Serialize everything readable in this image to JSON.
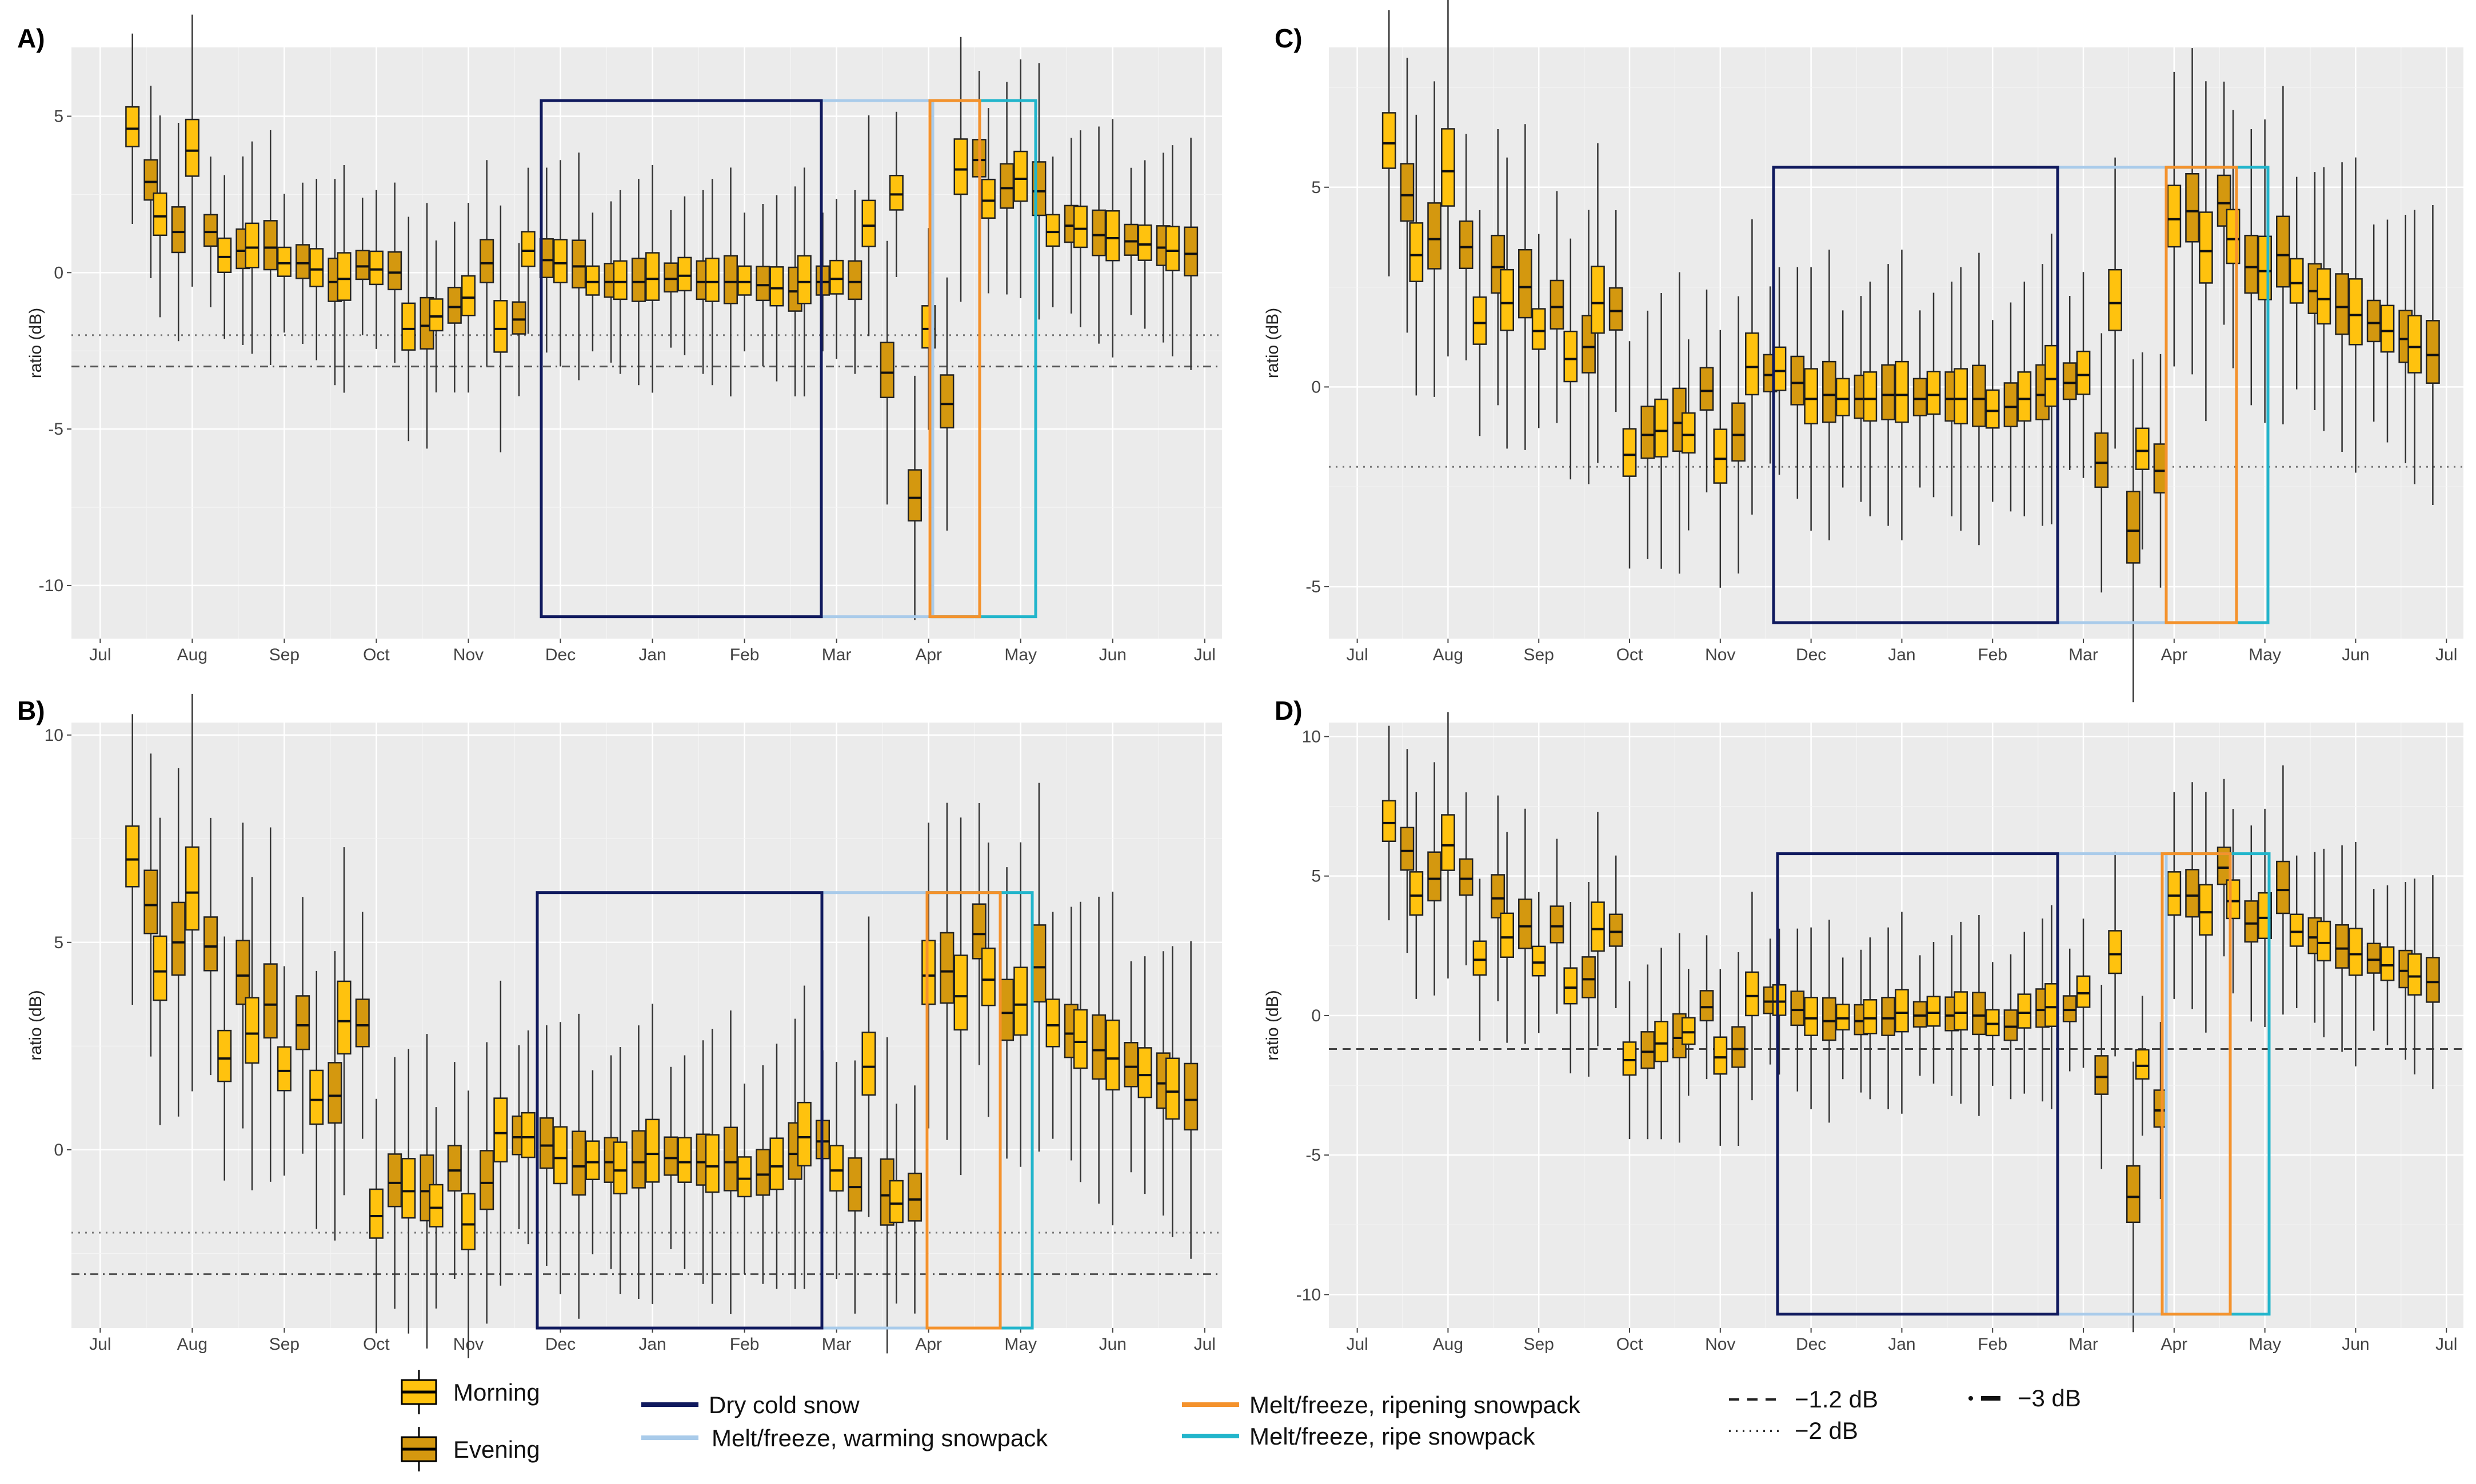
{
  "months": [
    "Jul",
    "Aug",
    "Sep",
    "Oct",
    "Nov",
    "Dec",
    "Jan",
    "Feb",
    "Mar",
    "Apr",
    "May",
    "Jun",
    "Jul"
  ],
  "colors": {
    "morning": "#FFC20E",
    "evening": "#D4980F",
    "dry": "#101A5E",
    "warming": "#A9CBEA",
    "ripening": "#F4922C",
    "ripe": "#22B5CB"
  },
  "chart_data": [
    {
      "type": "boxplot",
      "panel": "A)",
      "ylabel": "ratio (dB)",
      "ylim": [
        -11.7,
        7.2
      ],
      "yticks": [
        5,
        0,
        -5,
        -10
      ],
      "threshold_lines": [
        -2,
        -3
      ],
      "x_positions": [
        0.35,
        0.55,
        0.65,
        0.85,
        1.0,
        1.2,
        1.35,
        1.55,
        1.65,
        1.85,
        2.0,
        2.2,
        2.35,
        2.55,
        2.65,
        2.85,
        3.0,
        3.2,
        3.35,
        3.55,
        3.65,
        3.85,
        4.0,
        4.2,
        4.35,
        4.55,
        4.65,
        4.85,
        5.0,
        5.2,
        5.35,
        5.55,
        5.65,
        5.85,
        6.0,
        6.2,
        6.35,
        6.55,
        6.65,
        6.85,
        7.0,
        7.2,
        7.35,
        7.55,
        7.65,
        7.85,
        8.0,
        8.2,
        8.35,
        8.55,
        8.65,
        8.85,
        9.0,
        9.2,
        9.35,
        9.55,
        9.65,
        9.85,
        10.0,
        10.2,
        10.35,
        10.55,
        10.65,
        10.85,
        11.0,
        11.2,
        11.35,
        11.55,
        11.65,
        11.85
      ],
      "medians": [
        4.6,
        2.9,
        1.8,
        1.3,
        3.9,
        1.3,
        0.5,
        0.7,
        0.8,
        0.8,
        0.3,
        0.3,
        0.1,
        -0.3,
        -0.2,
        0.2,
        0.1,
        0.0,
        -1.8,
        -1.7,
        -1.4,
        -1.1,
        -0.8,
        0.3,
        -1.8,
        -1.5,
        0.7,
        0.4,
        0.3,
        0.2,
        -0.3,
        -0.3,
        -0.3,
        -0.3,
        -0.2,
        -0.2,
        -0.1,
        -0.3,
        -0.3,
        -0.3,
        -0.3,
        -0.4,
        -0.5,
        -0.6,
        -0.3,
        -0.3,
        -0.2,
        -0.3,
        1.5,
        -3.2,
        2.5,
        -7.2,
        -1.8,
        -4.2,
        3.3,
        3.6,
        2.3,
        2.7,
        3.0,
        2.6,
        1.3,
        1.5,
        1.4,
        1.2,
        1.1,
        1.0,
        0.9,
        0.8,
        0.7,
        0.6
      ],
      "series": [
        {
          "name": "Morning"
        },
        {
          "name": "Evening"
        }
      ]
    },
    {
      "type": "boxplot",
      "panel": "B)",
      "ylabel": "ratio (dB)",
      "ylim": [
        -4.3,
        10.3
      ],
      "yticks": [
        10,
        5,
        0
      ],
      "threshold_lines": [
        -2,
        -3
      ],
      "x_positions": [
        0.35,
        0.55,
        0.65,
        0.85,
        1.0,
        1.2,
        1.35,
        1.55,
        1.65,
        1.85,
        2.0,
        2.2,
        2.35,
        2.55,
        2.65,
        2.85,
        3.0,
        3.2,
        3.35,
        3.55,
        3.65,
        3.85,
        4.0,
        4.2,
        4.35,
        4.55,
        4.65,
        4.85,
        5.0,
        5.2,
        5.35,
        5.55,
        5.65,
        5.85,
        6.0,
        6.2,
        6.35,
        6.55,
        6.65,
        6.85,
        7.0,
        7.2,
        7.35,
        7.55,
        7.65,
        7.85,
        8.0,
        8.2,
        8.35,
        8.55,
        8.65,
        8.85,
        9.0,
        9.2,
        9.35,
        9.55,
        9.65,
        9.85,
        10.0,
        10.2,
        10.35,
        10.55,
        10.65,
        10.85,
        11.0,
        11.2,
        11.35,
        11.55,
        11.65,
        11.85
      ],
      "medians": [
        7.0,
        5.9,
        4.3,
        5.0,
        6.2,
        4.9,
        2.2,
        4.2,
        2.8,
        3.5,
        1.9,
        3.0,
        1.2,
        1.3,
        3.1,
        3.0,
        -1.6,
        -0.8,
        -1.0,
        -1.0,
        -1.4,
        -0.5,
        -1.8,
        -0.8,
        0.4,
        0.3,
        0.3,
        0.1,
        -0.2,
        -0.4,
        -0.3,
        -0.3,
        -0.5,
        -0.3,
        -0.1,
        -0.2,
        -0.3,
        -0.3,
        -0.4,
        -0.3,
        -0.7,
        -0.6,
        -0.4,
        -0.1,
        0.3,
        0.2,
        -0.5,
        -0.9,
        2.0,
        -1.1,
        -1.3,
        -1.2,
        4.2,
        4.3,
        3.7,
        5.2,
        4.1,
        3.3,
        3.5,
        4.4,
        3.0,
        2.8,
        2.6,
        2.4,
        2.2,
        2.0,
        1.8,
        1.6,
        1.4,
        1.2
      ],
      "series": [
        {
          "name": "Morning"
        },
        {
          "name": "Evening"
        }
      ]
    },
    {
      "type": "boxplot",
      "panel": "C)",
      "ylabel": "ratio (dB)",
      "ylim": [
        -6.3,
        8.5
      ],
      "yticks": [
        5,
        0,
        -5
      ],
      "threshold_lines": [
        -2
      ],
      "x_positions": [
        0.35,
        0.55,
        0.65,
        0.85,
        1.0,
        1.2,
        1.35,
        1.55,
        1.65,
        1.85,
        2.0,
        2.2,
        2.35,
        2.55,
        2.65,
        2.85,
        3.0,
        3.2,
        3.35,
        3.55,
        3.65,
        3.85,
        4.0,
        4.2,
        4.35,
        4.55,
        4.65,
        4.85,
        5.0,
        5.2,
        5.35,
        5.55,
        5.65,
        5.85,
        6.0,
        6.2,
        6.35,
        6.55,
        6.65,
        6.85,
        7.0,
        7.2,
        7.35,
        7.55,
        7.65,
        7.85,
        8.0,
        8.2,
        8.35,
        8.55,
        8.65,
        8.85,
        9.0,
        9.2,
        9.35,
        9.55,
        9.65,
        9.85,
        10.0,
        10.2,
        10.35,
        10.55,
        10.65,
        10.85,
        11.0,
        11.2,
        11.35,
        11.55,
        11.65,
        11.85
      ],
      "medians": [
        6.1,
        4.8,
        3.3,
        3.7,
        5.4,
        3.5,
        1.6,
        3.0,
        2.1,
        2.5,
        1.4,
        2.0,
        0.7,
        1.0,
        2.1,
        1.9,
        -1.7,
        -1.2,
        -1.1,
        -0.9,
        -1.2,
        -0.1,
        -1.8,
        -1.2,
        0.5,
        0.3,
        0.4,
        0.1,
        -0.3,
        -0.2,
        -0.3,
        -0.3,
        -0.3,
        -0.2,
        -0.2,
        -0.3,
        -0.2,
        -0.3,
        -0.3,
        -0.3,
        -0.6,
        -0.5,
        -0.3,
        -0.2,
        0.2,
        0.1,
        0.3,
        -1.9,
        2.1,
        -3.6,
        -1.6,
        -2.1,
        4.2,
        4.4,
        3.4,
        4.6,
        3.7,
        3.0,
        2.9,
        3.3,
        2.6,
        2.4,
        2.2,
        2.0,
        1.8,
        1.6,
        1.4,
        1.2,
        1.0,
        0.8
      ],
      "series": [
        {
          "name": "Morning"
        },
        {
          "name": "Evening"
        }
      ]
    },
    {
      "type": "boxplot",
      "panel": "D)",
      "ylabel": "ratio (dB)",
      "ylim": [
        -11.2,
        10.5
      ],
      "yticks": [
        10,
        5,
        0,
        -5,
        -10
      ],
      "threshold_lines": [
        -1.2
      ],
      "x_positions": [
        0.35,
        0.55,
        0.65,
        0.85,
        1.0,
        1.2,
        1.35,
        1.55,
        1.65,
        1.85,
        2.0,
        2.2,
        2.35,
        2.55,
        2.65,
        2.85,
        3.0,
        3.2,
        3.35,
        3.55,
        3.65,
        3.85,
        4.0,
        4.2,
        4.35,
        4.55,
        4.65,
        4.85,
        5.0,
        5.2,
        5.35,
        5.55,
        5.65,
        5.85,
        6.0,
        6.2,
        6.35,
        6.55,
        6.65,
        6.85,
        7.0,
        7.2,
        7.35,
        7.55,
        7.65,
        7.85,
        8.0,
        8.2,
        8.35,
        8.55,
        8.65,
        8.85,
        9.0,
        9.2,
        9.35,
        9.55,
        9.65,
        9.85,
        10.0,
        10.2,
        10.35,
        10.55,
        10.65,
        10.85,
        11.0,
        11.2,
        11.35,
        11.55,
        11.65,
        11.85
      ],
      "medians": [
        6.9,
        5.9,
        4.3,
        4.9,
        6.1,
        4.9,
        2.0,
        4.2,
        2.8,
        3.2,
        1.9,
        3.2,
        1.0,
        1.3,
        3.1,
        3.0,
        -1.6,
        -1.3,
        -1.0,
        -0.8,
        -0.6,
        0.3,
        -1.5,
        -1.2,
        0.7,
        0.5,
        0.5,
        0.2,
        -0.1,
        -0.2,
        -0.1,
        -0.2,
        -0.1,
        -0.1,
        0.1,
        0.0,
        0.1,
        0.0,
        0.1,
        0.0,
        -0.3,
        -0.4,
        0.1,
        0.2,
        0.3,
        0.2,
        0.8,
        -2.2,
        2.2,
        -6.5,
        -1.8,
        -3.4,
        4.3,
        4.3,
        3.7,
        5.3,
        4.1,
        3.3,
        3.5,
        4.5,
        3.0,
        2.8,
        2.6,
        2.4,
        2.2,
        2.0,
        1.8,
        1.6,
        1.4,
        1.2
      ],
      "series": [
        {
          "name": "Morning"
        },
        {
          "name": "Evening"
        }
      ]
    }
  ],
  "legend": {
    "morning": "Morning",
    "evening": "Evening",
    "dry": "Dry cold snow",
    "warming": "Melt/freeze, warming snowpack",
    "ripening": "Melt/freeze, ripening snowpack",
    "ripe": "Melt/freeze, ripe snowpack",
    "l12": "−1.2 dB",
    "l2": "−2 dB",
    "l3": "−3 dB"
  }
}
